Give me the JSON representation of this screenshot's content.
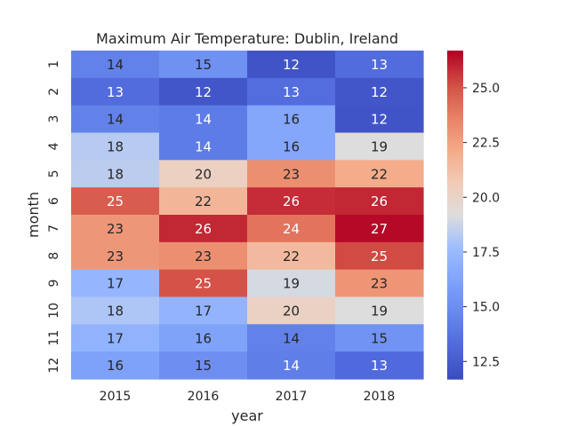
{
  "chart_data": {
    "type": "heatmap",
    "title": "Maximum Air Temperature: Dublin, Ireland",
    "xlabel": "year",
    "ylabel": "month",
    "x_categories": [
      "2015",
      "2016",
      "2017",
      "2018"
    ],
    "y_categories": [
      "1",
      "2",
      "3",
      "4",
      "5",
      "6",
      "7",
      "8",
      "9",
      "10",
      "11",
      "12"
    ],
    "values": [
      [
        14,
        15,
        12,
        13
      ],
      [
        13,
        12,
        13,
        12
      ],
      [
        14,
        14,
        16,
        12
      ],
      [
        18,
        14,
        16,
        19
      ],
      [
        18,
        20,
        23,
        22
      ],
      [
        25,
        22,
        26,
        26
      ],
      [
        23,
        26,
        24,
        27
      ],
      [
        23,
        23,
        22,
        25
      ],
      [
        17,
        25,
        19,
        23
      ],
      [
        18,
        17,
        20,
        19
      ],
      [
        17,
        16,
        14,
        15
      ],
      [
        16,
        15,
        14,
        13
      ]
    ],
    "fill_values": [
      [
        14.4,
        15.2,
        12.1,
        13.3
      ],
      [
        13.3,
        12.2,
        13.4,
        12.2
      ],
      [
        14.4,
        14.1,
        16.4,
        12.1
      ],
      [
        18.3,
        14.1,
        16.4,
        19.2
      ],
      [
        18.4,
        20.3,
        23.2,
        22.1
      ],
      [
        24.8,
        21.7,
        25.9,
        26.0
      ],
      [
        22.9,
        26.0,
        24.1,
        26.6
      ],
      [
        22.9,
        23.2,
        21.5,
        25.3
      ],
      [
        17.3,
        25.1,
        19.0,
        23.0
      ],
      [
        18.1,
        17.2,
        20.2,
        19.2
      ],
      [
        17.1,
        16.2,
        14.4,
        15.3
      ],
      [
        16.1,
        15.1,
        14.2,
        13.2
      ]
    ],
    "colorbar": {
      "range": [
        11.7,
        26.7
      ],
      "ticks": [
        "12.5",
        "15.0",
        "17.5",
        "20.0",
        "22.5",
        "25.0"
      ],
      "colormap": "coolwarm"
    },
    "grid": false
  }
}
